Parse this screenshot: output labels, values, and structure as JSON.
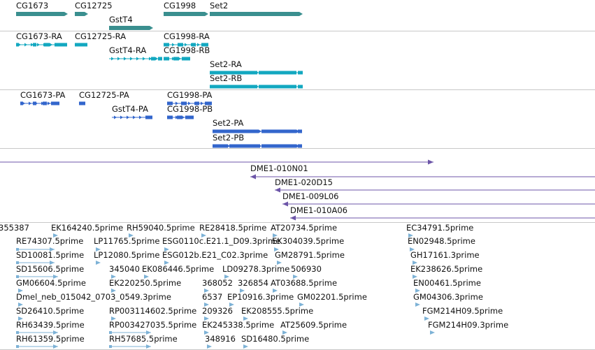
{
  "colors": {
    "gene": "#3a8f8f",
    "transcript": "#13a8c0",
    "protein": "#3366cc",
    "clone": "#6c55a8",
    "est": "#7db2d6",
    "divider": "#c8c8c8"
  },
  "tracks": {
    "genes": [
      "CG1673",
      "CG12725",
      "GstT4",
      "CG1998",
      "Set2"
    ],
    "transcripts": [
      "CG1673-RA",
      "CG12725-RA",
      "CG1998-RA",
      "GstT4-RA",
      "CG1998-RB",
      "Set2-RA",
      "Set2-RB"
    ],
    "proteins": [
      "CG1673-PA",
      "CG12725-PA",
      "CG1998-PA",
      "GstT4-PA",
      "CG1998-PB",
      "Set2-PA",
      "Set2-PB"
    ],
    "clones": [
      "DME1-010N01",
      "DME1-020D15",
      "DME1-009L06",
      "DME1-010A06"
    ],
    "ests": [
      "355387",
      "EK164240.5prime",
      "RH59040.5prime",
      "RE28418.5prime",
      "AT20734.5prime",
      "EC34791.5prime",
      "RE74307.5prime",
      "LP11765.5prime",
      "ESG0110c.E21.1_D09.3prime",
      "EK304039.5prime",
      "EN02948.5prime",
      "SD10081.5prime",
      "LP12080.5prime",
      "ESG012b.E21_C02.3prime",
      "GM28791.5prime",
      "GH17161.3prime",
      "SD15606.5prime",
      "345040",
      "EK086446.5prime",
      "LD09278.3prime",
      "506930",
      "EK238626.5prime",
      "GM06604.5prime",
      "EK220250.5prime",
      "368052",
      "326854",
      "AT03688.5prime",
      "EN00461.5prime",
      "Dmel_neb_015042_0703_0549.3prime",
      "6537",
      "EP10916.3prime",
      "GM02201.5prime",
      "GM04306.3prime",
      "SD26410.5prime",
      "RP003114602.5prime",
      "209326",
      "EK208555.5prime",
      "FGM214H09.5prime",
      "RH63439.5prime",
      "RP003427035.5prime",
      "EK245338.5prime",
      "AT25609.5prime",
      "FGM214H09.3prime",
      "RH61359.5prime",
      "RH57685.5prime",
      "348916",
      "SD16480.5prime"
    ]
  }
}
